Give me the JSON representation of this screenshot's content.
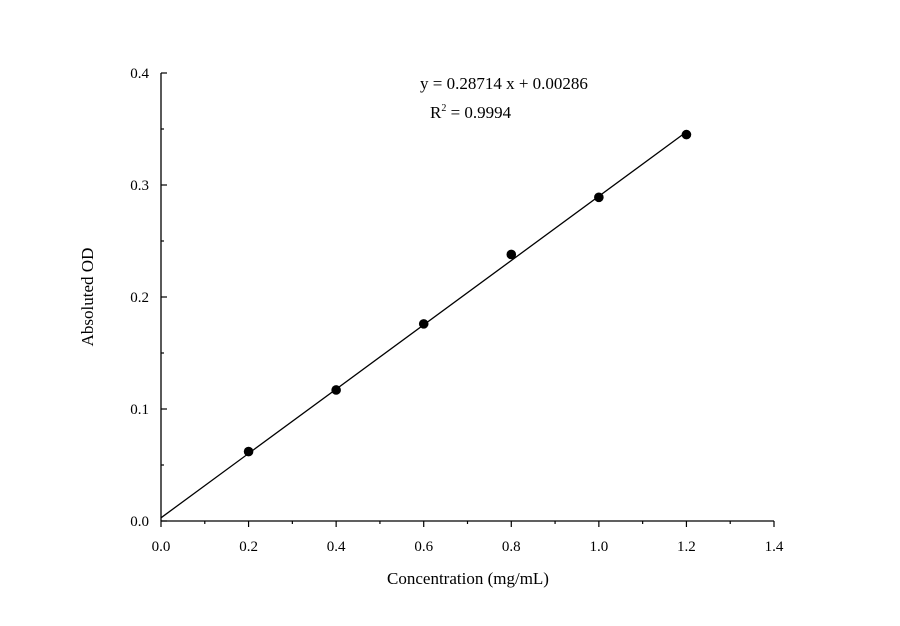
{
  "chart_data": {
    "type": "scatter",
    "title": "",
    "xlabel": "Concentration (mg/mL)",
    "ylabel": "Absoluted OD",
    "xlim": [
      0,
      1.4
    ],
    "ylim": [
      0,
      0.4
    ],
    "x_ticks": [
      "0.0",
      "0.2",
      "0.4",
      "0.6",
      "0.8",
      "1.0",
      "1.2",
      "1.4"
    ],
    "y_ticks": [
      "0.0",
      "0.1",
      "0.2",
      "0.3",
      "0.4"
    ],
    "x_tick_values": [
      0,
      0.2,
      0.4,
      0.6,
      0.8,
      1.0,
      1.2,
      1.4
    ],
    "y_tick_values": [
      0,
      0.1,
      0.2,
      0.3,
      0.4
    ],
    "grid": false,
    "points": {
      "x": [
        0.2,
        0.4,
        0.6,
        0.8,
        1.0,
        1.2
      ],
      "y": [
        0.062,
        0.117,
        0.176,
        0.238,
        0.289,
        0.345
      ]
    },
    "fit": {
      "slope": 0.28714,
      "intercept": 0.00286,
      "x_range": [
        0,
        1.2
      ],
      "equation": "y = 0.28714 x + 0.00286",
      "r2_prefix": "R",
      "r2_sup": "2",
      "r2_value": " = 0.9994"
    },
    "colors": {
      "points": "#000000",
      "line": "#000000",
      "axes": "#000000"
    }
  }
}
